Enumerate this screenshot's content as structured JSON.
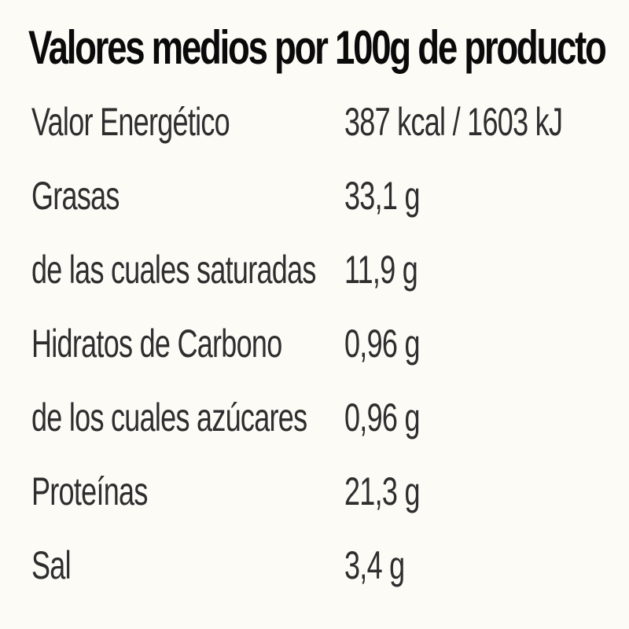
{
  "nutrition": {
    "title": "Valores medios por 100g de producto",
    "rows": [
      {
        "label": "Valor Energético",
        "value": "387 kcal / 1603 kJ"
      },
      {
        "label": "Grasas",
        "value": "33,1 g"
      },
      {
        "label": "de las cuales saturadas",
        "value": "11,9 g"
      },
      {
        "label": "Hidratos de Carbono",
        "value": "0,96 g"
      },
      {
        "label": "de los cuales azúcares",
        "value": "0,96 g"
      },
      {
        "label": "Proteínas",
        "value": "21,3 g"
      },
      {
        "label": "Sal",
        "value": "3,4 g"
      }
    ]
  },
  "colors": {
    "background": "#fcfbf6",
    "title": "#0a0a0a",
    "text": "#2e2e2e"
  }
}
